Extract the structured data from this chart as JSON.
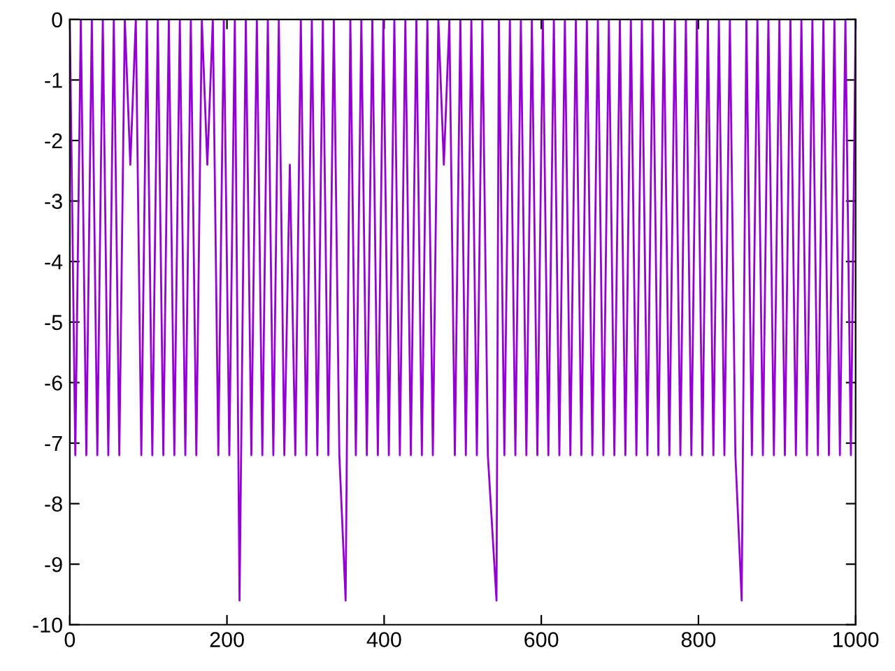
{
  "chart_data": {
    "type": "line",
    "xlim": [
      0,
      1000
    ],
    "ylim": [
      -10,
      0
    ],
    "xticks": [
      0,
      200,
      400,
      600,
      800,
      1000
    ],
    "yticks": [
      -10,
      -9,
      -8,
      -7,
      -6,
      -5,
      -4,
      -3,
      -2,
      -1,
      0
    ],
    "grid": false,
    "marker": "none",
    "line_style": "solid",
    "series": [
      {
        "color": "#9400d3",
        "x": [
          0,
          7,
          14,
          21,
          28,
          35,
          42,
          49,
          56,
          63,
          70,
          77,
          84,
          91,
          98,
          105,
          112,
          119,
          126,
          133,
          140,
          147,
          154,
          161,
          168,
          175,
          182,
          189,
          196,
          203,
          210,
          216,
          224,
          231,
          238,
          245,
          252,
          259,
          266,
          273,
          280,
          287,
          294,
          301,
          308,
          315,
          322,
          329,
          336,
          343,
          351,
          357,
          364,
          371,
          378,
          385,
          392,
          399,
          406,
          413,
          420,
          427,
          434,
          441,
          448,
          455,
          462,
          469,
          476,
          483,
          490,
          497,
          504,
          511,
          518,
          525,
          532,
          543,
          546,
          553,
          560,
          567,
          574,
          581,
          588,
          595,
          602,
          609,
          616,
          623,
          630,
          637,
          644,
          651,
          658,
          665,
          672,
          679,
          686,
          693,
          700,
          707,
          714,
          721,
          728,
          735,
          742,
          749,
          756,
          763,
          770,
          777,
          784,
          791,
          798,
          805,
          812,
          819,
          826,
          833,
          840,
          847,
          855,
          861,
          868,
          875,
          882,
          889,
          896,
          903,
          910,
          917,
          924,
          931,
          938,
          945,
          952,
          959,
          966,
          973,
          980,
          987,
          994,
          1000
        ],
        "values": [
          0,
          -7.2,
          0,
          -7.2,
          0,
          -7.2,
          0,
          -7.2,
          0,
          -7.2,
          0,
          -2.4,
          0,
          -7.2,
          0,
          -7.2,
          0,
          -7.2,
          0,
          -7.2,
          0,
          -7.2,
          0,
          -7.2,
          0,
          -2.4,
          0,
          -7.2,
          0,
          -7.2,
          0,
          -9.6,
          0,
          -7.2,
          0,
          -7.2,
          0,
          -7.2,
          0,
          -7.2,
          -2.4,
          -7.2,
          0,
          -7.2,
          0,
          -7.2,
          0,
          -7.2,
          0,
          -7.2,
          -9.6,
          0,
          -7.2,
          0,
          -7.2,
          0,
          -7.2,
          0,
          -7.2,
          0,
          -7.2,
          0,
          -7.2,
          0,
          -7.2,
          0,
          -7.2,
          0,
          -2.4,
          0,
          -7.2,
          0,
          -7.2,
          0,
          -7.2,
          0,
          -7.2,
          -9.6,
          0,
          -7.2,
          0,
          -7.2,
          0,
          -7.2,
          0,
          -7.2,
          0,
          -7.2,
          0,
          -7.2,
          0,
          -7.2,
          0,
          -7.2,
          0,
          -7.2,
          0,
          -7.2,
          0,
          -7.2,
          0,
          -7.2,
          0,
          -7.2,
          0,
          -7.2,
          0,
          -7.2,
          0,
          -7.2,
          0,
          -7.2,
          0,
          -7.2,
          0,
          -7.2,
          0,
          -7.2,
          0,
          -7.2,
          0,
          -7.2,
          -9.6,
          0,
          -7.2,
          0,
          -7.2,
          0,
          -7.2,
          0,
          -7.2,
          0,
          -7.2,
          0,
          -7.2,
          0,
          -7.2,
          0,
          -7.2,
          0,
          -7.2,
          0,
          -7.2,
          0
        ]
      }
    ]
  }
}
